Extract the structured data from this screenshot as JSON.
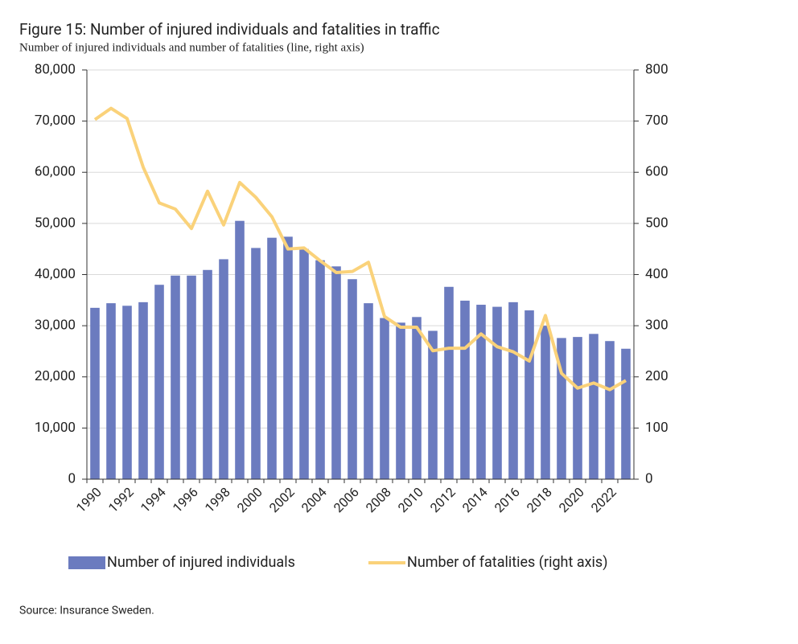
{
  "chart_data": {
    "type": "bar_line",
    "title": "Figure 15: Number of injured individuals and fatalities in traffic",
    "subtitle": "Number of injured individuals and number of fatalities (line, right axis)",
    "source": "Source: Insurance Sweden.",
    "categories": [
      "1990",
      null,
      "1992",
      null,
      "1994",
      null,
      "1996",
      null,
      "1998",
      null,
      "2000",
      null,
      "2002",
      null,
      "2004",
      null,
      "2006",
      null,
      "2008",
      null,
      "2010",
      null,
      "2012",
      null,
      "2014",
      null,
      "2016",
      null,
      "2018",
      null,
      "2020",
      null,
      "2022",
      null
    ],
    "series": [
      {
        "name": "Number of injured individuals",
        "type": "bar",
        "color": "#6b7bbf",
        "values": [
          33500,
          34400,
          33900,
          34600,
          38000,
          39800,
          39800,
          40900,
          43000,
          50500,
          45200,
          47200,
          47400,
          45000,
          42800,
          41600,
          39100,
          34400,
          31500,
          30600,
          31700,
          29000,
          37600,
          34900,
          34100,
          33700,
          34600,
          33000,
          30000,
          27600,
          27800,
          28400,
          27000,
          25500
        ]
      },
      {
        "name": "Number of fatalities (right axis)",
        "type": "line",
        "axis": "y2",
        "color": "#fad27a",
        "values": [
          703,
          725,
          705,
          610,
          540,
          528,
          490,
          563,
          497,
          580,
          551,
          513,
          450,
          452,
          427,
          404,
          406,
          424,
          318,
          297,
          297,
          251,
          256,
          256,
          284,
          259,
          249,
          231,
          320,
          207,
          178,
          188,
          175,
          193
        ]
      }
    ],
    "ylim": [
      0,
      80000
    ],
    "yticks": [
      0,
      {
        "value": 10000,
        "label": "10,000"
      },
      {
        "value": 20000,
        "label": "20,000"
      },
      {
        "value": 30000,
        "label": "30,000"
      },
      {
        "value": 40000,
        "label": "40,000"
      },
      {
        "value": 50000,
        "label": "50,000"
      },
      {
        "value": 60000,
        "label": "60,000"
      },
      {
        "value": 70000,
        "label": "70,000"
      },
      {
        "value": 80000,
        "label": "80,000"
      }
    ],
    "y2lim": [
      0,
      800
    ],
    "y2ticks": [
      0,
      100,
      200,
      300,
      400,
      500,
      600,
      700,
      800
    ],
    "grid": true
  }
}
